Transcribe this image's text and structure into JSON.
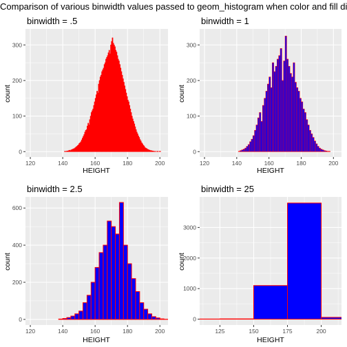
{
  "page": {
    "title": "Comparison of various binwidth values passed to geom_histogram when color and fill differ"
  },
  "chart_data": [
    {
      "type": "bar",
      "title": "binwidth = .5",
      "xlabel": "HEIGHT",
      "ylabel": "count",
      "binwidth": 0.5,
      "fill": "#ff0000",
      "stroke": "#ff0000",
      "xlim": [
        117,
        205
      ],
      "ylim": [
        -15,
        345
      ],
      "xticks": [
        120,
        140,
        160,
        180,
        200
      ],
      "yticks": [
        0,
        100,
        200,
        300
      ],
      "bins_x": [
        120.0,
        120.5,
        121.0,
        121.5,
        122.0,
        122.5,
        123.0,
        123.5,
        124.0,
        124.5,
        125.0,
        125.5,
        126.0,
        126.5,
        127.0,
        127.5,
        128.0,
        128.5,
        129.0,
        129.5,
        130.0,
        130.5,
        131.0,
        131.5,
        132.0,
        132.5,
        133.0,
        133.5,
        134.0,
        134.5,
        135.0,
        135.5,
        136.0,
        136.5,
        137.0,
        137.5,
        138.0,
        138.5,
        139.0,
        139.5,
        140.0,
        140.5,
        141.0,
        141.5,
        142.0,
        142.5,
        143.0,
        143.5,
        144.0,
        144.5,
        145.0,
        145.5,
        146.0,
        146.5,
        147.0,
        147.5,
        148.0,
        148.5,
        149.0,
        149.5,
        150.0,
        150.5,
        151.0,
        151.5,
        152.0,
        152.5,
        153.0,
        153.5,
        154.0,
        154.5,
        155.0,
        155.5,
        156.0,
        156.5,
        157.0,
        157.5,
        158.0,
        158.5,
        159.0,
        159.5,
        160.0,
        160.5,
        161.0,
        161.5,
        162.0,
        162.5,
        163.0,
        163.5,
        164.0,
        164.5,
        165.0,
        165.5,
        166.0,
        166.5,
        167.0,
        167.5,
        168.0,
        168.5,
        169.0,
        169.5,
        170.0,
        170.5,
        171.0,
        171.5,
        172.0,
        172.5,
        173.0,
        173.5,
        174.0,
        174.5,
        175.0,
        175.5,
        176.0,
        176.5,
        177.0,
        177.5,
        178.0,
        178.5,
        179.0,
        179.5,
        180.0,
        180.5,
        181.0,
        181.5,
        182.0,
        182.5,
        183.0,
        183.5,
        184.0,
        184.5,
        185.0,
        185.5,
        186.0,
        186.5,
        187.0,
        187.5,
        188.0,
        188.5,
        189.0,
        189.5,
        190.0,
        190.5,
        191.0,
        191.5,
        192.0,
        192.5,
        193.0,
        193.5,
        194.0,
        194.5,
        195.0,
        195.5,
        196.0,
        196.5,
        197.0,
        197.5,
        198.0,
        198.5,
        199.0,
        199.5,
        200.0,
        200.5,
        201.0,
        201.5,
        202.0,
        202.5,
        203.0
      ],
      "values": [
        0,
        0,
        0,
        0,
        0,
        0,
        0,
        0,
        0,
        0,
        0,
        0,
        0,
        0,
        0,
        0,
        0,
        0,
        0,
        0,
        0,
        0,
        0,
        0,
        0,
        0,
        0,
        0,
        0,
        0,
        0,
        0,
        0,
        0,
        0,
        0,
        0,
        0,
        0,
        0,
        0,
        0,
        1,
        1,
        1,
        2,
        2,
        3,
        4,
        3,
        5,
        6,
        7,
        8,
        9,
        11,
        13,
        15,
        17,
        19,
        23,
        25,
        28,
        33,
        38,
        43,
        48,
        55,
        60,
        62,
        72,
        80,
        75,
        90,
        100,
        110,
        115,
        120,
        130,
        140,
        150,
        160,
        170,
        165,
        190,
        200,
        210,
        215,
        225,
        230,
        235,
        245,
        250,
        260,
        265,
        270,
        278,
        285,
        275,
        300,
        310,
        320,
        305,
        300,
        295,
        285,
        280,
        270,
        260,
        255,
        245,
        235,
        225,
        215,
        205,
        195,
        185,
        175,
        165,
        155,
        145,
        140,
        130,
        120,
        110,
        100,
        92,
        85,
        78,
        70,
        62,
        55,
        50,
        44,
        40,
        34,
        30,
        25,
        22,
        18,
        16,
        12,
        10,
        9,
        7,
        6,
        5,
        4,
        3,
        3,
        2,
        2,
        1,
        1,
        1,
        0,
        1,
        1,
        0,
        1,
        1,
        0,
        0,
        0,
        0,
        0,
        0
      ]
    },
    {
      "type": "bar",
      "title": "binwidth = 1",
      "xlabel": "HEIGHT",
      "ylabel": "count",
      "binwidth": 1,
      "fill": "#0000ff",
      "stroke": "#ff0000",
      "xlim": [
        117,
        205
      ],
      "ylim": [
        -15,
        345
      ],
      "xticks": [
        120,
        140,
        160,
        180,
        200
      ],
      "yticks": [
        0,
        100,
        200,
        300
      ],
      "bins_x": [
        120,
        121,
        122,
        123,
        124,
        125,
        126,
        127,
        128,
        129,
        130,
        131,
        132,
        133,
        134,
        135,
        136,
        137,
        138,
        139,
        140,
        141,
        142,
        143,
        144,
        145,
        146,
        147,
        148,
        149,
        150,
        151,
        152,
        153,
        154,
        155,
        156,
        157,
        158,
        159,
        160,
        161,
        162,
        163,
        164,
        165,
        166,
        167,
        168,
        169,
        170,
        171,
        172,
        173,
        174,
        175,
        176,
        177,
        178,
        179,
        180,
        181,
        182,
        183,
        184,
        185,
        186,
        187,
        188,
        189,
        190,
        191,
        192,
        193,
        194,
        195,
        196,
        197,
        198,
        199,
        200,
        201,
        202,
        203
      ],
      "values": [
        0,
        0,
        0,
        0,
        0,
        0,
        0,
        0,
        0,
        0,
        0,
        0,
        0,
        0,
        0,
        0,
        0,
        0,
        0,
        0,
        0,
        1,
        3,
        5,
        7,
        10,
        15,
        20,
        28,
        35,
        45,
        60,
        75,
        95,
        110,
        85,
        130,
        150,
        170,
        190,
        210,
        180,
        250,
        225,
        240,
        260,
        270,
        290,
        200,
        255,
        325,
        260,
        240,
        220,
        210,
        250,
        195,
        180,
        170,
        150,
        140,
        120,
        110,
        90,
        75,
        60,
        50,
        40,
        30,
        22,
        15,
        10,
        7,
        5,
        3,
        2,
        1,
        1,
        0,
        0,
        0,
        0,
        0,
        0
      ]
    },
    {
      "type": "bar",
      "title": "binwidth = 2.5",
      "xlabel": "HEIGHT",
      "ylabel": "count",
      "binwidth": 2.5,
      "fill": "#0000ff",
      "stroke": "#ff0000",
      "xlim": [
        117,
        205
      ],
      "ylim": [
        -30,
        660
      ],
      "xticks": [
        120,
        140,
        160,
        180,
        200
      ],
      "yticks": [
        0,
        200,
        400,
        600
      ],
      "bins_x": [
        120.0,
        122.5,
        125.0,
        127.5,
        130.0,
        132.5,
        135.0,
        137.5,
        140.0,
        142.5,
        145.0,
        147.5,
        150.0,
        152.5,
        155.0,
        157.5,
        160.0,
        162.5,
        165.0,
        167.5,
        170.0,
        172.5,
        175.0,
        177.5,
        180.0,
        182.5,
        185.0,
        187.5,
        190.0,
        192.5,
        195.0,
        197.5,
        200.0,
        202.5
      ],
      "values": [
        0,
        0,
        0,
        0,
        0,
        0,
        0,
        2,
        5,
        10,
        18,
        30,
        45,
        90,
        130,
        200,
        280,
        360,
        400,
        530,
        500,
        460,
        630,
        400,
        300,
        220,
        150,
        90,
        55,
        30,
        15,
        8,
        3,
        1
      ]
    },
    {
      "type": "bar",
      "title": "binwidth = 25",
      "xlabel": "HEIGHT",
      "ylabel": "count",
      "binwidth": 25,
      "fill": "#0000ff",
      "stroke": "#ff0000",
      "xlim": [
        110,
        215
      ],
      "ylim": [
        -190,
        4000
      ],
      "xticks": [
        125,
        150,
        175,
        200
      ],
      "yticks": [
        0,
        1000,
        2000,
        3000
      ],
      "bins_x": [
        100,
        125,
        150,
        175,
        200
      ],
      "values": [
        5,
        10,
        1100,
        3800,
        60
      ]
    }
  ]
}
